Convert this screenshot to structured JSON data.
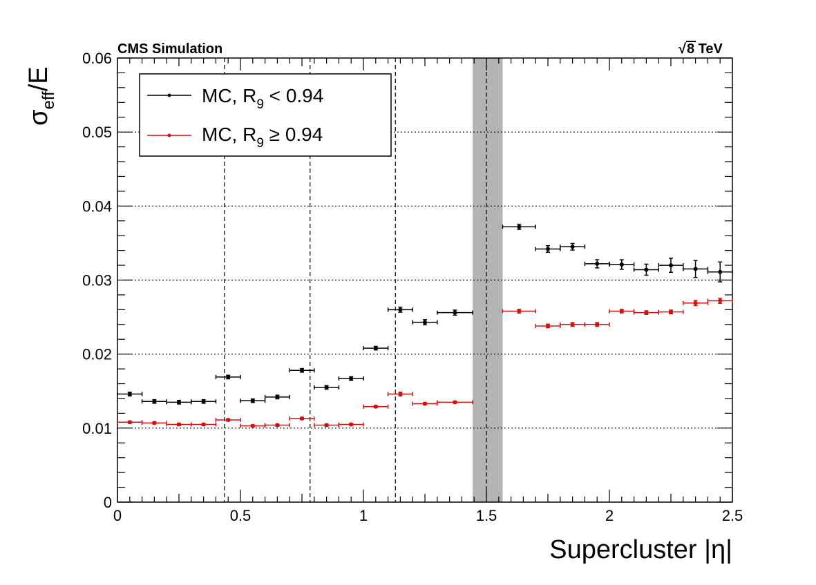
{
  "chart_data": {
    "type": "scatter",
    "top_left_label": "CMS Simulation",
    "top_right_label": "8 TeV",
    "top_right_symbol": "√",
    "xlabel": "Supercluster |η|",
    "ylabel": "σ",
    "ylabel_sub": "eff",
    "ylabel_suffix": "/E",
    "xlim": [
      0,
      2.5
    ],
    "ylim": [
      0,
      0.06
    ],
    "x_ticks": [
      "0",
      "0.5",
      "1",
      "1.5",
      "2",
      "2.5"
    ],
    "y_ticks": [
      "0",
      "0.01",
      "0.02",
      "0.03",
      "0.04",
      "0.05",
      "0.06"
    ],
    "grid": "horizontal dotted",
    "vertical_dashed_lines": [
      0.435,
      0.783,
      1.13,
      1.5
    ],
    "excluded_band": [
      1.4442,
      1.566
    ],
    "legend_position": "top-left",
    "series": [
      {
        "name": "MC, R",
        "name_sub": "9",
        "name_suffix": " < 0.94",
        "color": "#000000",
        "points": [
          {
            "x": 0.05,
            "xerr": 0.05,
            "y": 0.0146,
            "yerr": 0.0002
          },
          {
            "x": 0.15,
            "xerr": 0.05,
            "y": 0.0136,
            "yerr": 0.0002
          },
          {
            "x": 0.25,
            "xerr": 0.05,
            "y": 0.0135,
            "yerr": 0.0002
          },
          {
            "x": 0.35,
            "xerr": 0.05,
            "y": 0.0136,
            "yerr": 0.0002
          },
          {
            "x": 0.45,
            "xerr": 0.05,
            "y": 0.0169,
            "yerr": 0.0002
          },
          {
            "x": 0.55,
            "xerr": 0.05,
            "y": 0.0137,
            "yerr": 0.0002
          },
          {
            "x": 0.65,
            "xerr": 0.05,
            "y": 0.0142,
            "yerr": 0.0002
          },
          {
            "x": 0.75,
            "xerr": 0.05,
            "y": 0.0178,
            "yerr": 0.0002
          },
          {
            "x": 0.85,
            "xerr": 0.05,
            "y": 0.0155,
            "yerr": 0.0002
          },
          {
            "x": 0.95,
            "xerr": 0.05,
            "y": 0.0167,
            "yerr": 0.0002
          },
          {
            "x": 1.05,
            "xerr": 0.05,
            "y": 0.0208,
            "yerr": 0.0002
          },
          {
            "x": 1.15,
            "xerr": 0.05,
            "y": 0.026,
            "yerr": 0.0003
          },
          {
            "x": 1.25,
            "xerr": 0.05,
            "y": 0.0243,
            "yerr": 0.0003
          },
          {
            "x": 1.372,
            "xerr": 0.072,
            "y": 0.0256,
            "yerr": 0.0003
          },
          {
            "x": 1.633,
            "xerr": 0.067,
            "y": 0.0372,
            "yerr": 0.0003
          },
          {
            "x": 1.75,
            "xerr": 0.05,
            "y": 0.0342,
            "yerr": 0.0004
          },
          {
            "x": 1.85,
            "xerr": 0.05,
            "y": 0.0345,
            "yerr": 0.0004
          },
          {
            "x": 1.95,
            "xerr": 0.05,
            "y": 0.0322,
            "yerr": 0.0005
          },
          {
            "x": 2.05,
            "xerr": 0.05,
            "y": 0.0321,
            "yerr": 0.0006
          },
          {
            "x": 2.15,
            "xerr": 0.05,
            "y": 0.0314,
            "yerr": 0.0007
          },
          {
            "x": 2.25,
            "xerr": 0.05,
            "y": 0.032,
            "yerr": 0.0009
          },
          {
            "x": 2.35,
            "xerr": 0.05,
            "y": 0.0315,
            "yerr": 0.0011
          },
          {
            "x": 2.45,
            "xerr": 0.05,
            "y": 0.0311,
            "yerr": 0.0013
          }
        ]
      },
      {
        "name": "MC, R",
        "name_sub": "9",
        "name_suffix": " ≥ 0.94",
        "color": "#d01010",
        "points": [
          {
            "x": 0.05,
            "xerr": 0.05,
            "y": 0.0108,
            "yerr": 0.0001
          },
          {
            "x": 0.15,
            "xerr": 0.05,
            "y": 0.0107,
            "yerr": 0.0001
          },
          {
            "x": 0.25,
            "xerr": 0.05,
            "y": 0.0105,
            "yerr": 0.0001
          },
          {
            "x": 0.35,
            "xerr": 0.05,
            "y": 0.0105,
            "yerr": 0.0001
          },
          {
            "x": 0.45,
            "xerr": 0.05,
            "y": 0.0111,
            "yerr": 0.0001
          },
          {
            "x": 0.55,
            "xerr": 0.05,
            "y": 0.0103,
            "yerr": 0.0001
          },
          {
            "x": 0.65,
            "xerr": 0.05,
            "y": 0.0104,
            "yerr": 0.0001
          },
          {
            "x": 0.75,
            "xerr": 0.05,
            "y": 0.0113,
            "yerr": 0.0001
          },
          {
            "x": 0.85,
            "xerr": 0.05,
            "y": 0.0104,
            "yerr": 0.0001
          },
          {
            "x": 0.95,
            "xerr": 0.05,
            "y": 0.0105,
            "yerr": 0.0001
          },
          {
            "x": 1.05,
            "xerr": 0.05,
            "y": 0.0129,
            "yerr": 0.0001
          },
          {
            "x": 1.15,
            "xerr": 0.05,
            "y": 0.0146,
            "yerr": 0.0002
          },
          {
            "x": 1.25,
            "xerr": 0.05,
            "y": 0.0133,
            "yerr": 0.0001
          },
          {
            "x": 1.372,
            "xerr": 0.072,
            "y": 0.0135,
            "yerr": 0.0001
          },
          {
            "x": 1.633,
            "xerr": 0.067,
            "y": 0.0258,
            "yerr": 0.0002
          },
          {
            "x": 1.75,
            "xerr": 0.05,
            "y": 0.0238,
            "yerr": 0.0002
          },
          {
            "x": 1.85,
            "xerr": 0.05,
            "y": 0.024,
            "yerr": 0.0002
          },
          {
            "x": 1.95,
            "xerr": 0.05,
            "y": 0.024,
            "yerr": 0.0002
          },
          {
            "x": 2.05,
            "xerr": 0.05,
            "y": 0.0258,
            "yerr": 0.0002
          },
          {
            "x": 2.15,
            "xerr": 0.05,
            "y": 0.0256,
            "yerr": 0.0002
          },
          {
            "x": 2.25,
            "xerr": 0.05,
            "y": 0.0257,
            "yerr": 0.0002
          },
          {
            "x": 2.35,
            "xerr": 0.05,
            "y": 0.0269,
            "yerr": 0.0003
          },
          {
            "x": 2.45,
            "xerr": 0.05,
            "y": 0.0272,
            "yerr": 0.0003
          }
        ]
      }
    ]
  }
}
